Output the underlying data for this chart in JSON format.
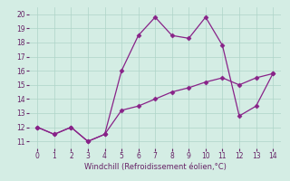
{
  "line1_x": [
    0,
    1,
    2,
    3,
    4,
    5,
    6,
    7,
    8,
    9,
    10,
    11,
    12,
    13,
    14
  ],
  "line1_y": [
    12,
    11.5,
    12,
    11,
    11.5,
    16,
    18.5,
    19.8,
    18.5,
    18.3,
    19.8,
    17.8,
    12.8,
    13.5,
    15.8
  ],
  "line2_x": [
    0,
    1,
    2,
    3,
    4,
    5,
    6,
    7,
    8,
    9,
    10,
    11,
    12,
    13,
    14
  ],
  "line2_y": [
    12,
    11.5,
    12,
    11,
    11.5,
    13.2,
    13.5,
    14.0,
    14.5,
    14.8,
    15.2,
    15.5,
    15.0,
    15.5,
    15.8
  ],
  "line_color": "#882288",
  "xlabel": "Windchill (Refroidissement éolien,°C)",
  "xlim": [
    -0.5,
    14.5
  ],
  "ylim": [
    10.5,
    20.5
  ],
  "yticks": [
    11,
    12,
    13,
    14,
    15,
    16,
    17,
    18,
    19,
    20
  ],
  "xticks": [
    0,
    1,
    2,
    3,
    4,
    5,
    6,
    7,
    8,
    9,
    10,
    11,
    12,
    13,
    14
  ],
  "bg_color": "#d4ede4",
  "grid_color": "#aed4c8",
  "tick_color": "#662266",
  "label_color": "#662266",
  "tick_fontsize": 5.5,
  "xlabel_fontsize": 6.0
}
